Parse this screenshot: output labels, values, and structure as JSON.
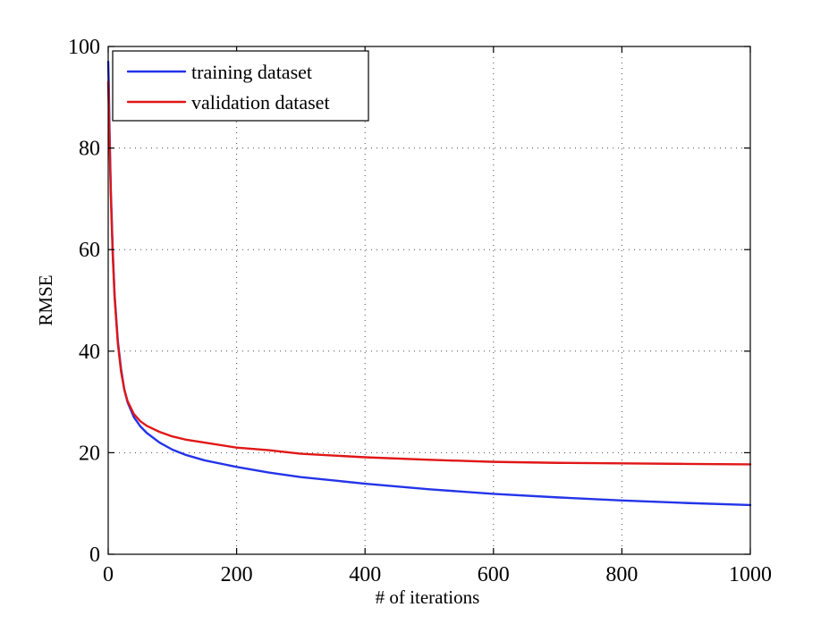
{
  "colors": {
    "training": "#2434e8",
    "validation": "#e01717",
    "axis": "#000000",
    "grid": "#4a4a4a",
    "background": "#ffffff"
  },
  "chart_data": {
    "type": "line",
    "title": "",
    "xlabel": "# of iterations",
    "ylabel": "RMSE",
    "xlim": [
      0,
      1000
    ],
    "ylim": [
      0,
      100
    ],
    "xticks": [
      0,
      200,
      400,
      600,
      800,
      1000
    ],
    "yticks": [
      0,
      20,
      40,
      60,
      80,
      100
    ],
    "xtick_labels": [
      "0",
      "200",
      "400",
      "600",
      "800",
      "1000"
    ],
    "ytick_labels": [
      "0",
      "20",
      "40",
      "60",
      "80",
      "100"
    ],
    "grid": true,
    "legend_position": "top-left",
    "series": [
      {
        "name": "training dataset",
        "color": "#2434e8",
        "x": [
          0,
          1,
          2,
          4,
          7,
          10,
          15,
          20,
          25,
          30,
          40,
          50,
          60,
          80,
          100,
          120,
          150,
          200,
          250,
          300,
          400,
          500,
          600,
          700,
          800,
          900,
          1000
        ],
        "y": [
          97,
          92,
          84,
          72,
          60,
          51,
          42,
          36.5,
          32.5,
          30,
          27,
          25.2,
          23.9,
          22,
          20.6,
          19.6,
          18.5,
          17.2,
          16.1,
          15.2,
          13.9,
          12.8,
          11.9,
          11.2,
          10.6,
          10.1,
          9.7
        ]
      },
      {
        "name": "validation dataset",
        "color": "#e01717",
        "x": [
          0,
          1,
          2,
          4,
          7,
          10,
          15,
          20,
          25,
          30,
          40,
          50,
          60,
          80,
          100,
          120,
          150,
          200,
          250,
          300,
          400,
          500,
          600,
          700,
          800,
          900,
          1000
        ],
        "y": [
          93,
          88,
          82,
          71,
          59,
          50.5,
          41.5,
          36,
          32.5,
          30.2,
          27.6,
          26.2,
          25.3,
          24.1,
          23.2,
          22.6,
          22,
          21,
          20.5,
          19.8,
          19.1,
          18.6,
          18.2,
          18,
          17.9,
          17.8,
          17.7
        ]
      }
    ]
  }
}
